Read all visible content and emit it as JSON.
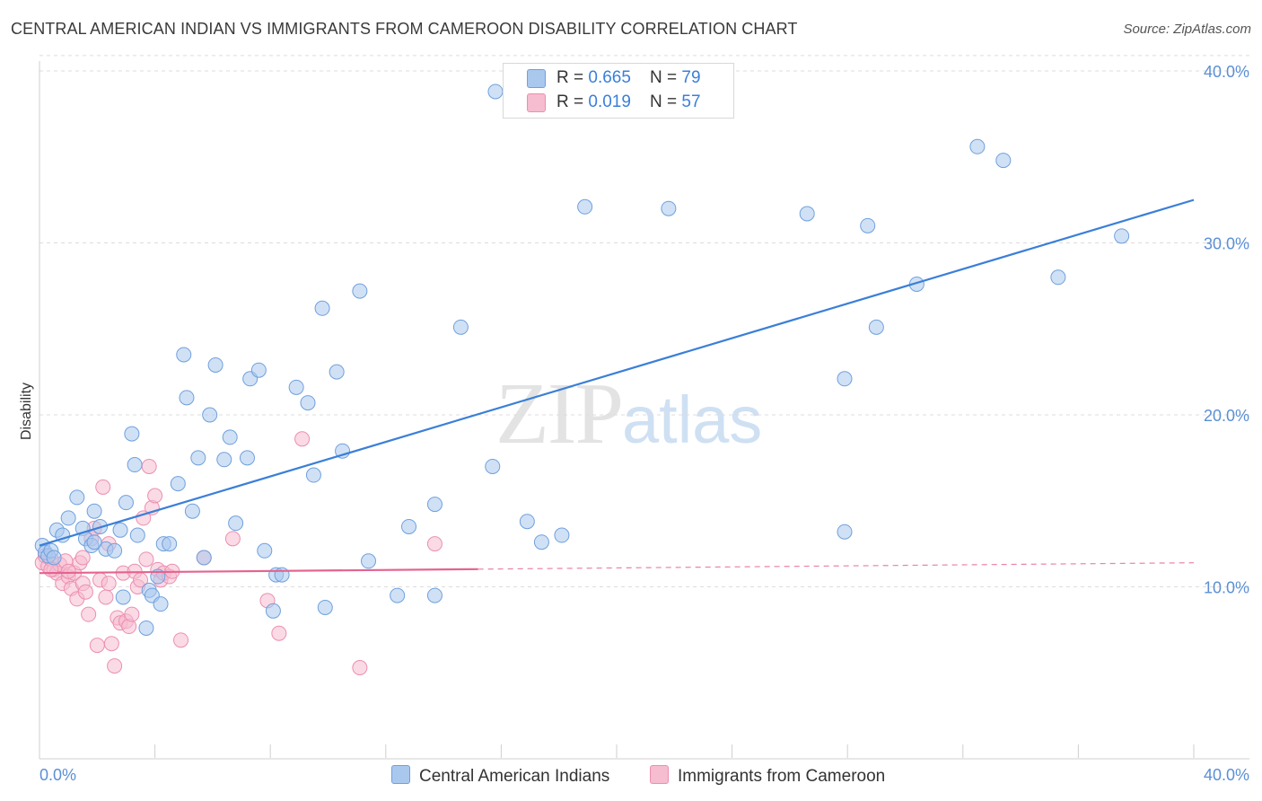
{
  "title": "CENTRAL AMERICAN INDIAN VS IMMIGRANTS FROM CAMEROON DISABILITY CORRELATION CHART",
  "source": "Source: ZipAtlas.com",
  "watermark": {
    "zip": "ZIP",
    "atlas": "atlas"
  },
  "legend": {
    "rows": [
      {
        "r_label": "R = ",
        "r_value": "0.665",
        "n_label": "N = ",
        "n_value": "79"
      },
      {
        "r_label": "R = ",
        "r_value": "0.019",
        "n_label": "N = ",
        "n_value": "57"
      }
    ]
  },
  "bottom_legend": {
    "series1": "Central American Indians",
    "series2": "Immigrants from Cameroon"
  },
  "colors": {
    "series1_fill": "#aac8ee",
    "series1_stroke": "#6fa0dd",
    "series1_line": "#3a7fd8",
    "series2_fill": "#f6bcd0",
    "series2_stroke": "#ec8fb0",
    "series2_line": "#e4648f",
    "grid": "#dcdcdc",
    "tick_text": "#5b8fd6"
  },
  "chart_data": {
    "type": "scatter",
    "title": "CENTRAL AMERICAN INDIAN VS IMMIGRANTS FROM CAMEROON DISABILITY CORRELATION CHART",
    "xlabel": "",
    "ylabel": "Disability",
    "xlim": [
      0,
      40
    ],
    "ylim": [
      0,
      41
    ],
    "x_tick_labels": [
      "0.0%",
      "40.0%"
    ],
    "y_ticks": [
      10,
      20,
      30,
      40
    ],
    "y_tick_labels": [
      "10.0%",
      "20.0%",
      "30.0%",
      "40.0%"
    ],
    "grid": true,
    "series": [
      {
        "name": "Central American Indians",
        "R": 0.665,
        "N": 79,
        "trend": {
          "x0": 0,
          "y0": 12.4,
          "x1": 40,
          "y1": 32.5,
          "style": "solid"
        },
        "points": [
          [
            0.1,
            12.4
          ],
          [
            0.2,
            12.0
          ],
          [
            0.3,
            11.8
          ],
          [
            0.4,
            12.1
          ],
          [
            0.5,
            11.7
          ],
          [
            0.6,
            13.3
          ],
          [
            0.8,
            13.0
          ],
          [
            1.0,
            14.0
          ],
          [
            1.3,
            15.2
          ],
          [
            1.5,
            13.4
          ],
          [
            1.6,
            12.8
          ],
          [
            1.8,
            12.4
          ],
          [
            1.9,
            14.4
          ],
          [
            2.1,
            13.5
          ],
          [
            2.3,
            12.2
          ],
          [
            2.6,
            12.1
          ],
          [
            2.8,
            13.3
          ],
          [
            3.0,
            14.9
          ],
          [
            3.2,
            18.9
          ],
          [
            3.3,
            17.1
          ],
          [
            3.4,
            13.0
          ],
          [
            3.7,
            7.6
          ],
          [
            3.8,
            9.8
          ],
          [
            3.9,
            9.5
          ],
          [
            4.1,
            10.6
          ],
          [
            4.2,
            9.0
          ],
          [
            4.3,
            12.5
          ],
          [
            4.5,
            12.5
          ],
          [
            4.8,
            16.0
          ],
          [
            5.0,
            23.5
          ],
          [
            5.1,
            21.0
          ],
          [
            5.3,
            14.4
          ],
          [
            5.5,
            17.5
          ],
          [
            5.7,
            11.7
          ],
          [
            5.9,
            20.0
          ],
          [
            6.1,
            22.9
          ],
          [
            6.4,
            17.4
          ],
          [
            6.6,
            18.7
          ],
          [
            6.8,
            13.7
          ],
          [
            7.2,
            17.5
          ],
          [
            7.3,
            22.1
          ],
          [
            7.6,
            22.6
          ],
          [
            7.8,
            12.1
          ],
          [
            8.1,
            8.6
          ],
          [
            8.2,
            10.7
          ],
          [
            8.4,
            10.7
          ],
          [
            8.9,
            21.6
          ],
          [
            9.3,
            20.7
          ],
          [
            9.5,
            16.5
          ],
          [
            9.8,
            26.2
          ],
          [
            9.9,
            8.8
          ],
          [
            10.3,
            22.5
          ],
          [
            10.5,
            17.9
          ],
          [
            11.1,
            27.2
          ],
          [
            11.4,
            11.5
          ],
          [
            12.4,
            9.5
          ],
          [
            12.8,
            13.5
          ],
          [
            13.7,
            9.5
          ],
          [
            13.7,
            14.8
          ],
          [
            14.6,
            25.1
          ],
          [
            15.7,
            17.0
          ],
          [
            15.8,
            38.8
          ],
          [
            16.9,
            13.8
          ],
          [
            17.4,
            12.6
          ],
          [
            18.1,
            13.0
          ],
          [
            18.9,
            32.1
          ],
          [
            21.8,
            32.0
          ],
          [
            26.6,
            31.7
          ],
          [
            27.9,
            13.2
          ],
          [
            27.9,
            22.1
          ],
          [
            28.7,
            31.0
          ],
          [
            29.0,
            25.1
          ],
          [
            30.4,
            27.6
          ],
          [
            32.5,
            35.6
          ],
          [
            33.4,
            34.8
          ],
          [
            35.3,
            28.0
          ],
          [
            37.5,
            30.4
          ],
          [
            1.9,
            12.6
          ],
          [
            2.9,
            9.4
          ]
        ]
      },
      {
        "name": "Immigrants from Cameroon",
        "R": 0.019,
        "N": 57,
        "trend": {
          "x0": 0,
          "y0": 10.8,
          "x1": 40,
          "y1": 11.4,
          "style": "solid-then-dashed",
          "solid_until_x": 15.2
        },
        "points": [
          [
            0.1,
            11.4
          ],
          [
            0.2,
            11.8
          ],
          [
            0.3,
            11.2
          ],
          [
            0.4,
            11.6
          ],
          [
            0.5,
            11.0
          ],
          [
            0.6,
            10.8
          ],
          [
            0.7,
            11.3
          ],
          [
            0.8,
            10.2
          ],
          [
            0.9,
            11.5
          ],
          [
            1.0,
            10.6
          ],
          [
            1.1,
            9.9
          ],
          [
            1.2,
            10.8
          ],
          [
            1.3,
            9.3
          ],
          [
            1.4,
            11.4
          ],
          [
            1.5,
            10.2
          ],
          [
            1.6,
            9.7
          ],
          [
            1.7,
            8.4
          ],
          [
            1.8,
            12.8
          ],
          [
            1.9,
            13.4
          ],
          [
            2.0,
            6.6
          ],
          [
            2.1,
            10.4
          ],
          [
            2.2,
            15.8
          ],
          [
            2.3,
            9.4
          ],
          [
            2.4,
            10.2
          ],
          [
            2.5,
            6.7
          ],
          [
            2.6,
            5.4
          ],
          [
            2.7,
            8.2
          ],
          [
            2.8,
            7.9
          ],
          [
            2.9,
            10.8
          ],
          [
            3.0,
            8.0
          ],
          [
            3.1,
            7.7
          ],
          [
            3.2,
            8.4
          ],
          [
            3.3,
            10.9
          ],
          [
            3.4,
            10.0
          ],
          [
            3.5,
            10.4
          ],
          [
            3.6,
            14.0
          ],
          [
            3.7,
            11.6
          ],
          [
            3.8,
            17.0
          ],
          [
            3.9,
            14.6
          ],
          [
            4.0,
            15.3
          ],
          [
            4.1,
            11.0
          ],
          [
            4.2,
            10.4
          ],
          [
            4.3,
            10.8
          ],
          [
            4.5,
            10.6
          ],
          [
            4.6,
            10.9
          ],
          [
            4.9,
            6.9
          ],
          [
            5.7,
            11.7
          ],
          [
            6.7,
            12.8
          ],
          [
            7.9,
            9.2
          ],
          [
            8.3,
            7.3
          ],
          [
            9.1,
            18.6
          ],
          [
            11.1,
            5.3
          ],
          [
            13.7,
            12.5
          ],
          [
            0.4,
            11.0
          ],
          [
            1.0,
            10.9
          ],
          [
            1.5,
            11.7
          ],
          [
            2.4,
            12.5
          ]
        ]
      }
    ]
  }
}
